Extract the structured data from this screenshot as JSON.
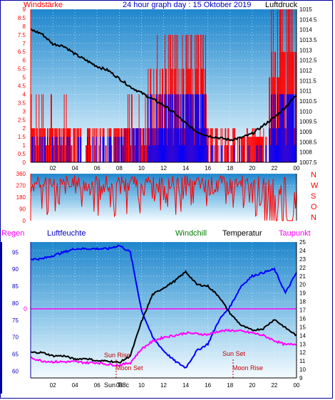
{
  "header": {
    "left_label": "Windstärke",
    "title": "24 hour graph day : 15 Oktober 2019",
    "right_label": "Luftdruck"
  },
  "wind_panel": {
    "left_ticks": [
      "9",
      "8.5",
      "8",
      "7.5",
      "7",
      "6.5",
      "6",
      "5.5",
      "5",
      "4.5",
      "4",
      "3.5",
      "3",
      "2.5",
      "2",
      "1.5",
      "1",
      "0.5",
      "0"
    ],
    "right_ticks": [
      "1015",
      "1014.5",
      "1014",
      "1013.5",
      "1013",
      "1012.5",
      "1012",
      "1011.5",
      "1011",
      "1010.5",
      "1010",
      "1009.5",
      "1009",
      "1008.5",
      "1008",
      "1007.5"
    ],
    "x_ticks": [
      "02",
      "04",
      "06",
      "08",
      "10",
      "12",
      "14",
      "16",
      "18",
      "20",
      "22",
      "00"
    ]
  },
  "dir_panel": {
    "left_ticks": [
      "360",
      "270",
      "180",
      "90",
      "0"
    ],
    "right_ticks": [
      "N",
      "W",
      "S",
      "O",
      "N"
    ]
  },
  "bottom_header": {
    "regen": "Regen",
    "luftfeuchte": "Luftfeuchte",
    "windchill": "Windchill",
    "temperatur": "Temperatur",
    "taupunkt": "Taupunkt"
  },
  "temp_panel": {
    "left_ticks": [
      "95",
      "90",
      "85",
      "80",
      "75",
      "70",
      "65",
      "60"
    ],
    "rain_tick": "0",
    "right_ticks": [
      "25",
      "24",
      "23",
      "22",
      "21",
      "20",
      "19",
      "18",
      "17",
      "16",
      "15",
      "14",
      "13",
      "12",
      "11",
      "10",
      "9"
    ],
    "x_ticks": [
      "02",
      "04",
      "06",
      "08",
      "10",
      "12",
      "14",
      "16",
      "18",
      "20",
      "22",
      "00"
    ],
    "annotations": {
      "sun_rise": "Sun Rise",
      "sun_set": "Sun Set",
      "moon_set": "Moon Set",
      "moon_rise": "Moon Rise",
      "sun_time_clipped": "Sun Ti8c"
    }
  },
  "colors": {
    "pressure": "#000000",
    "wind_avg": "#0000ff",
    "wind_gust": "#ff0000",
    "direction": "#ff0000",
    "humidity": "#0000ff",
    "temperature": "#000000",
    "dewpoint": "#ff00ff",
    "rain": "#ff00ff",
    "frame": "#0000a0"
  },
  "chart_data": [
    {
      "type": "line",
      "title": "24 hour graph day : 15 Oktober 2019",
      "x_unit": "hour",
      "x_range": [
        0,
        24
      ],
      "y_left_label": "Windstärke",
      "ylim_left": [
        0,
        9
      ],
      "y_right_label": "Luftdruck",
      "ylim_right": [
        1007.5,
        1015
      ],
      "series": [
        {
          "name": "Luftdruck",
          "axis": "right",
          "x": [
            0,
            1,
            2,
            3,
            4,
            5,
            6,
            7,
            8,
            9,
            10,
            11,
            12,
            13,
            14,
            15,
            16,
            17,
            18,
            19,
            20,
            21,
            22,
            23,
            24
          ],
          "values": [
            1014.0,
            1013.8,
            1013.3,
            1013.2,
            1012.8,
            1012.5,
            1012.2,
            1012.0,
            1011.6,
            1011.2,
            1010.9,
            1010.6,
            1010.3,
            1009.9,
            1009.4,
            1009.0,
            1008.8,
            1008.7,
            1008.6,
            1008.7,
            1008.9,
            1009.3,
            1009.7,
            1010.2,
            1010.8
          ]
        }
      ]
    },
    {
      "type": "line",
      "x_unit": "hour",
      "x_range": [
        0,
        24
      ],
      "ylim_left": [
        0,
        360
      ],
      "y_right_ticks": [
        "N",
        "W",
        "S",
        "O",
        "N"
      ]
    },
    {
      "type": "line",
      "x_unit": "hour",
      "x_range": [
        0,
        24
      ],
      "ylim_left": [
        58,
        98
      ],
      "ylim_right": [
        9,
        25
      ],
      "series": [
        {
          "name": "Luftfeuchte",
          "axis": "left",
          "x": [
            0,
            1,
            2,
            3,
            4,
            5,
            6,
            7,
            8,
            9,
            10,
            11,
            12,
            13,
            14,
            15,
            16,
            17,
            18,
            19,
            20,
            21,
            22,
            23,
            24
          ],
          "values": [
            93,
            93,
            94,
            95,
            96,
            96,
            96,
            96,
            97,
            95,
            78,
            70,
            66,
            63,
            61,
            66,
            68,
            75,
            79,
            85,
            88,
            89,
            90,
            83,
            89
          ]
        },
        {
          "name": "Temperatur",
          "axis": "right",
          "x": [
            0,
            1,
            2,
            3,
            4,
            5,
            6,
            7,
            8,
            9,
            10,
            11,
            12,
            13,
            14,
            15,
            16,
            17,
            18,
            19,
            20,
            21,
            22,
            23,
            24
          ],
          "values": [
            12.0,
            12.0,
            11.6,
            11.6,
            11.2,
            11.3,
            11.0,
            11.0,
            10.8,
            11.6,
            15.6,
            18.8,
            19.6,
            20.4,
            21.5,
            20.0,
            19.8,
            18.6,
            16.6,
            15.2,
            14.6,
            14.8,
            15.9,
            14.9,
            14.0
          ]
        },
        {
          "name": "Taupunkt",
          "axis": "right",
          "x": [
            0,
            1,
            2,
            3,
            4,
            5,
            6,
            7,
            8,
            9,
            10,
            11,
            12,
            13,
            14,
            15,
            16,
            17,
            18,
            19,
            20,
            21,
            22,
            23,
            24
          ],
          "values": [
            11.4,
            11.0,
            10.9,
            10.9,
            10.9,
            10.8,
            10.8,
            10.6,
            10.5,
            10.8,
            12.4,
            13.3,
            13.8,
            14.0,
            14.3,
            14.2,
            14.1,
            14.5,
            14.6,
            14.5,
            14.3,
            14.0,
            13.4,
            12.9,
            13.0
          ]
        }
      ]
    }
  ]
}
